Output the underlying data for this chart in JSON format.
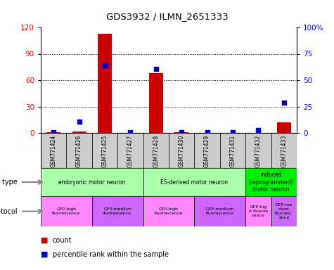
{
  "title": "GDS3932 / ILMN_2651333",
  "samples": [
    "GSM771424",
    "GSM771426",
    "GSM771425",
    "GSM771427",
    "GSM771428",
    "GSM771430",
    "GSM771429",
    "GSM771431",
    "GSM771432",
    "GSM771433"
  ],
  "counts": [
    1,
    2,
    113,
    0,
    68,
    1,
    0,
    0,
    0,
    12
  ],
  "percentile": [
    0.5,
    11,
    64,
    0.5,
    61,
    1,
    0.5,
    0.5,
    3,
    29
  ],
  "ylim_left": [
    0,
    120
  ],
  "ylim_right": [
    0,
    100
  ],
  "yticks_left": [
    0,
    30,
    60,
    90,
    120
  ],
  "yticks_right": [
    0,
    25,
    50,
    75,
    100
  ],
  "yticklabels_right": [
    "0",
    "25",
    "50",
    "75",
    "100%"
  ],
  "cell_type_groups": [
    {
      "label": "embryonic motor neuron",
      "start": 0,
      "end": 3,
      "color": "#aaffaa"
    },
    {
      "label": "ES-derived motor neuron",
      "start": 4,
      "end": 7,
      "color": "#aaffaa"
    },
    {
      "label": "induced\n(reprogrammed)\nmotor neuron",
      "start": 8,
      "end": 9,
      "color": "#00ee00"
    }
  ],
  "protocol_groups": [
    {
      "label": "GFP-high\nfluorescence",
      "start": 0,
      "end": 1,
      "color": "#ff88ff"
    },
    {
      "label": "GFP-medium\nfluorescence",
      "start": 2,
      "end": 3,
      "color": "#cc66ff"
    },
    {
      "label": "GFP-high\nfluorescence",
      "start": 4,
      "end": 5,
      "color": "#ff88ff"
    },
    {
      "label": "GFP-medium\nfluorescence",
      "start": 6,
      "end": 7,
      "color": "#cc66ff"
    },
    {
      "label": "GFP-hig\nh fluores\ncence",
      "start": 8,
      "end": 8,
      "color": "#ff88ff"
    },
    {
      "label": "GFP-me\ndium\nfluoresc\nence",
      "start": 9,
      "end": 9,
      "color": "#cc66ff"
    }
  ],
  "bar_color": "#cc0000",
  "dot_color": "#0000cc",
  "sample_bg_color": "#cccccc",
  "count_label": "count",
  "percentile_label": "percentile rank within the sample"
}
